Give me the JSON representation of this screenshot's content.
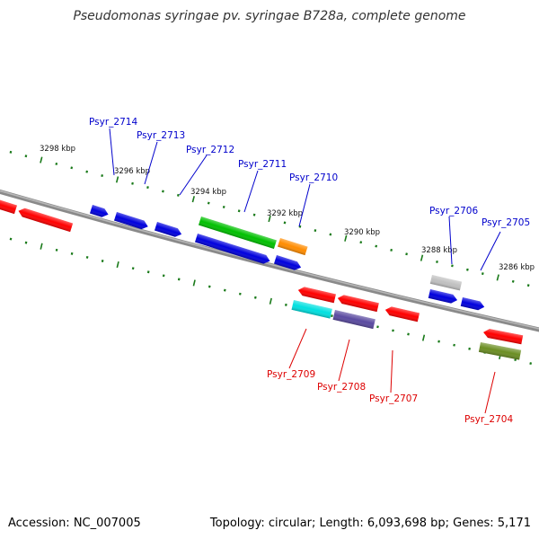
{
  "title": "Pseudomonas syringae pv. syringae B728a, complete genome",
  "footer": {
    "accession": "Accession: NC_007005",
    "summary": "Topology: circular; Length: 6,093,698 bp; Genes: 5,171"
  },
  "colors": {
    "backbone": "#8a8a8a",
    "ticks": "#1a7a1a",
    "label_plus": "#0000cc",
    "label_minus": "#dd0000"
  },
  "scale_labels": [
    "3298 kbp",
    "3296 kbp",
    "3294 kbp",
    "3292 kbp",
    "3290 kbp",
    "3288 kbp",
    "3286 kbp"
  ],
  "labeled_genes": [
    {
      "id": "Psyr_2714",
      "strand": "plus",
      "color": "#0000dd"
    },
    {
      "id": "Psyr_2713",
      "strand": "plus",
      "color": "#0000dd"
    },
    {
      "id": "Psyr_2712",
      "strand": "plus",
      "color": "#0000dd"
    },
    {
      "id": "Psyr_2711",
      "strand": "plus",
      "color": "#0000dd"
    },
    {
      "id": "Psyr_2710",
      "strand": "plus",
      "color": "#0000dd"
    },
    {
      "id": "Psyr_2706",
      "strand": "plus",
      "color": "#0000dd"
    },
    {
      "id": "Psyr_2705",
      "strand": "plus",
      "color": "#0000dd"
    },
    {
      "id": "Psyr_2709",
      "strand": "minus",
      "color": "#ff0000"
    },
    {
      "id": "Psyr_2708",
      "strand": "minus",
      "color": "#ff0000"
    },
    {
      "id": "Psyr_2707",
      "strand": "minus",
      "color": "#ff0000"
    },
    {
      "id": "Psyr_2704",
      "strand": "minus",
      "color": "#ff0000"
    }
  ],
  "feature_tracks": [
    {
      "track": "cog-plus",
      "colors": [
        "#00c000",
        "#ff8c00",
        "#c0c0c0"
      ]
    },
    {
      "track": "cog-minus",
      "colors": [
        "#00e0e0",
        "#5a4aa0",
        "#6b8e23"
      ]
    }
  ]
}
